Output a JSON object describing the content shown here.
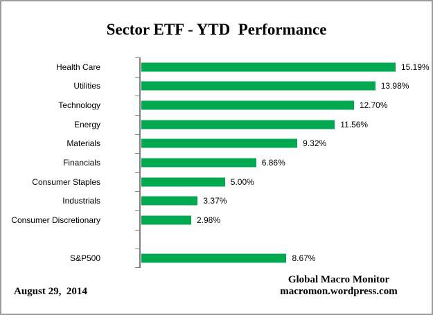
{
  "title": "Sector ETF - YTD  Performance",
  "footer": {
    "date": "August 29,  2014",
    "source_line1": "Global Macro Monitor",
    "source_line2": "macromon.wordpress.com"
  },
  "colors": {
    "bar": "#00A850",
    "axis": "#808080",
    "text": "#000000",
    "frame_border": "#9c9c9c"
  },
  "chart_data": {
    "type": "bar",
    "orientation": "horizontal",
    "title": "Sector ETF - YTD  Performance",
    "xlabel": "",
    "ylabel": "",
    "xlim": [
      0,
      15.5
    ],
    "gridlines": false,
    "value_axis_visible": false,
    "legend": "none",
    "bar_color": "#00A850",
    "categories": [
      "Health Care",
      "Utilities",
      "Technology",
      "Energy",
      "Materials",
      "Financials",
      "Consumer Staples",
      "Industrials",
      "Consumer Discretionary",
      "",
      "S&P500"
    ],
    "values": [
      15.19,
      13.98,
      12.7,
      11.56,
      9.32,
      6.86,
      5.0,
      3.37,
      2.98,
      null,
      8.67
    ],
    "value_labels": [
      "15.19%",
      "13.98%",
      "12.70%",
      "11.56%",
      "9.32%",
      "6.86%",
      "5.00%",
      "3.37%",
      "2.98%",
      "",
      "8.67%"
    ]
  }
}
